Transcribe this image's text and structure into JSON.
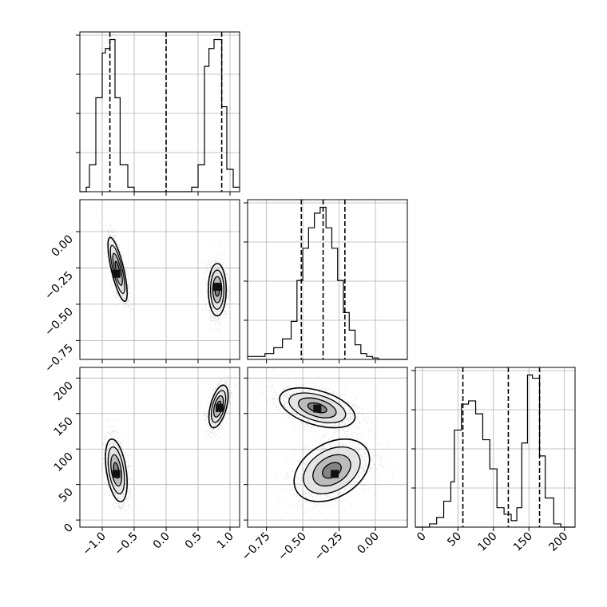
{
  "chart_data": {
    "type": "corner",
    "title": "",
    "grid": true,
    "parameters": [
      {
        "name": "",
        "range": [
          -1.35,
          1.15
        ],
        "ticks": [
          {
            "value": -1.0,
            "label": "−1.0"
          },
          {
            "value": -0.5,
            "label": "−0.5"
          },
          {
            "value": 0.0,
            "label": "0.0"
          },
          {
            "value": 0.5,
            "label": "0.5"
          },
          {
            "value": 1.0,
            "label": "1.0"
          }
        ],
        "quantiles": [
          -0.88,
          0.0,
          0.87
        ],
        "hist": {
          "bin_edges": [
            -1.35,
            -1.25,
            -1.2,
            -1.1,
            -1.0,
            -0.95,
            -0.88,
            -0.8,
            -0.72,
            -0.6,
            -0.5,
            0.4,
            0.5,
            0.6,
            0.67,
            0.75,
            0.8,
            0.87,
            0.95,
            1.05,
            1.15
          ],
          "counts": [
            0,
            1,
            6,
            21,
            31,
            32,
            34,
            21,
            6,
            1,
            0,
            1,
            6,
            28,
            32,
            34,
            34,
            19,
            5,
            1
          ]
        }
      },
      {
        "name": "",
        "range": [
          -0.88,
          0.22
        ],
        "ticks": [
          {
            "value": -0.75,
            "label": "−0.75"
          },
          {
            "value": -0.5,
            "label": "−0.50"
          },
          {
            "value": -0.25,
            "label": "−0.25"
          },
          {
            "value": 0.0,
            "label": "0.00"
          }
        ],
        "quantiles": [
          -0.51,
          -0.36,
          -0.21
        ],
        "hist": {
          "bin_edges": [
            -0.88,
            -0.76,
            -0.7,
            -0.64,
            -0.58,
            -0.54,
            -0.5,
            -0.46,
            -0.42,
            -0.38,
            -0.34,
            -0.3,
            -0.26,
            -0.22,
            -0.18,
            -0.14,
            -0.1,
            -0.06,
            -0.02,
            0.02,
            0.06,
            0.22
          ],
          "counts": [
            1,
            2,
            4,
            7,
            13,
            27,
            38,
            45,
            50,
            52,
            45,
            38,
            27,
            16,
            10,
            5,
            2,
            1,
            0.5,
            0,
            0
          ]
        }
      },
      {
        "name": "",
        "range": [
          -10,
          215
        ],
        "ticks": [
          {
            "value": 0,
            "label": "0"
          },
          {
            "value": 50,
            "label": "50"
          },
          {
            "value": 100,
            "label": "100"
          },
          {
            "value": 150,
            "label": "150"
          },
          {
            "value": 200,
            "label": "200"
          }
        ],
        "quantiles": [
          57,
          121,
          165
        ],
        "hist": {
          "bin_edges": [
            -10,
            10,
            20,
            30,
            40,
            45,
            55,
            65,
            75,
            85,
            95,
            105,
            115,
            125,
            133,
            140,
            148,
            155,
            165,
            173,
            185,
            195,
            215
          ],
          "counts": [
            0,
            1,
            3,
            8,
            14,
            30,
            38,
            39,
            35,
            27,
            18,
            6,
            4,
            2,
            6,
            26,
            47,
            46,
            22,
            9,
            1,
            0
          ]
        }
      }
    ],
    "pairs": [
      {
        "x_param": 0,
        "y_param": 1,
        "clusters": [
          {
            "cx": -0.76,
            "cy": -0.26,
            "sx": 0.075,
            "sy": 0.11,
            "rho": -0.75,
            "peak": [
              -0.78,
              -0.29
            ]
          },
          {
            "cx": 0.8,
            "cy": -0.4,
            "sx": 0.07,
            "sy": 0.09,
            "rho": 0.0,
            "peak": [
              0.8,
              -0.38
            ]
          }
        ]
      },
      {
        "x_param": 0,
        "y_param": 2,
        "clusters": [
          {
            "cx": -0.78,
            "cy": 70,
            "sx": 0.085,
            "sy": 22,
            "rho": -0.4,
            "peak": [
              -0.78,
              65
            ]
          },
          {
            "cx": 0.82,
            "cy": 160,
            "sx": 0.075,
            "sy": 15,
            "rho": 0.5,
            "peak": [
              0.84,
              158
            ]
          }
        ]
      },
      {
        "x_param": 1,
        "y_param": 2,
        "clusters": [
          {
            "cx": -0.4,
            "cy": 158,
            "sx": 0.13,
            "sy": 14,
            "rho": -0.45,
            "peak": [
              -0.4,
              157
            ]
          },
          {
            "cx": -0.3,
            "cy": 70,
            "sx": 0.13,
            "sy": 22,
            "rho": 0.35,
            "peak": [
              -0.28,
              65
            ]
          }
        ]
      }
    ]
  }
}
